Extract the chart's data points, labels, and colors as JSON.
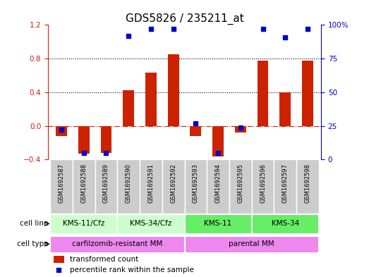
{
  "title": "GDS5826 / 235211_at",
  "samples": [
    "GSM1692587",
    "GSM1692588",
    "GSM1692589",
    "GSM1692590",
    "GSM1692591",
    "GSM1692592",
    "GSM1692593",
    "GSM1692594",
    "GSM1692595",
    "GSM1692596",
    "GSM1692597",
    "GSM1692598"
  ],
  "transformed_count": [
    -0.12,
    -0.33,
    -0.32,
    0.42,
    0.63,
    0.85,
    -0.12,
    -0.36,
    -0.08,
    0.78,
    0.4,
    0.78
  ],
  "percentile_rank": [
    22,
    5,
    5,
    92,
    97,
    97,
    27,
    5,
    24,
    97,
    91,
    97
  ],
  "ylim_left": [
    -0.4,
    1.2
  ],
  "ylim_right": [
    0,
    100
  ],
  "yticks_left": [
    -0.4,
    0.0,
    0.4,
    0.8,
    1.2
  ],
  "yticks_right": [
    0,
    25,
    50,
    75,
    100
  ],
  "cell_line_groups": [
    {
      "label": "KMS-11/Cfz",
      "start": 0,
      "end": 3,
      "color": "#ccffcc"
    },
    {
      "label": "KMS-34/Cfz",
      "start": 3,
      "end": 6,
      "color": "#ccffcc"
    },
    {
      "label": "KMS-11",
      "start": 6,
      "end": 9,
      "color": "#66ee66"
    },
    {
      "label": "KMS-34",
      "start": 9,
      "end": 12,
      "color": "#66ee66"
    }
  ],
  "cell_type_color": "#ee88ee",
  "cell_type_groups": [
    {
      "label": "carfilzomib-resistant MM",
      "start": 0,
      "end": 6
    },
    {
      "label": "parental MM",
      "start": 6,
      "end": 12
    }
  ],
  "bar_color": "#cc2200",
  "dot_color": "#0000cc",
  "zero_line_color": "#cc2200",
  "bg_color": "#ffffff",
  "sample_bg_color": "#cccccc",
  "label_fontsize": 7.5,
  "tick_fontsize": 7.5,
  "bar_width": 0.5
}
